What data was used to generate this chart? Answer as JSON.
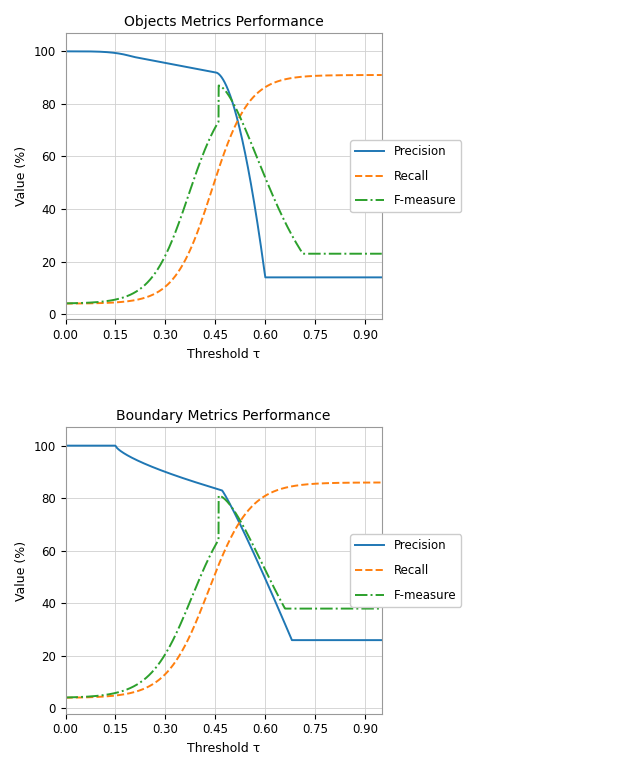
{
  "title1": "Objects Metrics Performance",
  "title2": "Boundary Metrics Performance",
  "xlabel": "Threshold τ",
  "ylabel": "Value (%)",
  "xlim": [
    0.0,
    0.95
  ],
  "ylim": [
    -2,
    107
  ],
  "xticks": [
    0.0,
    0.15,
    0.3,
    0.45,
    0.6,
    0.75,
    0.9
  ],
  "yticks": [
    0,
    20,
    40,
    60,
    80,
    100
  ],
  "precision_color": "#1f77b4",
  "recall_color": "#ff7f0e",
  "fmeasure_color": "#2ca02c",
  "legend_labels": [
    "Precision",
    "Recall",
    "F-measure"
  ],
  "bg_color": "#ffffff",
  "grid_color": "#d0d0d0"
}
